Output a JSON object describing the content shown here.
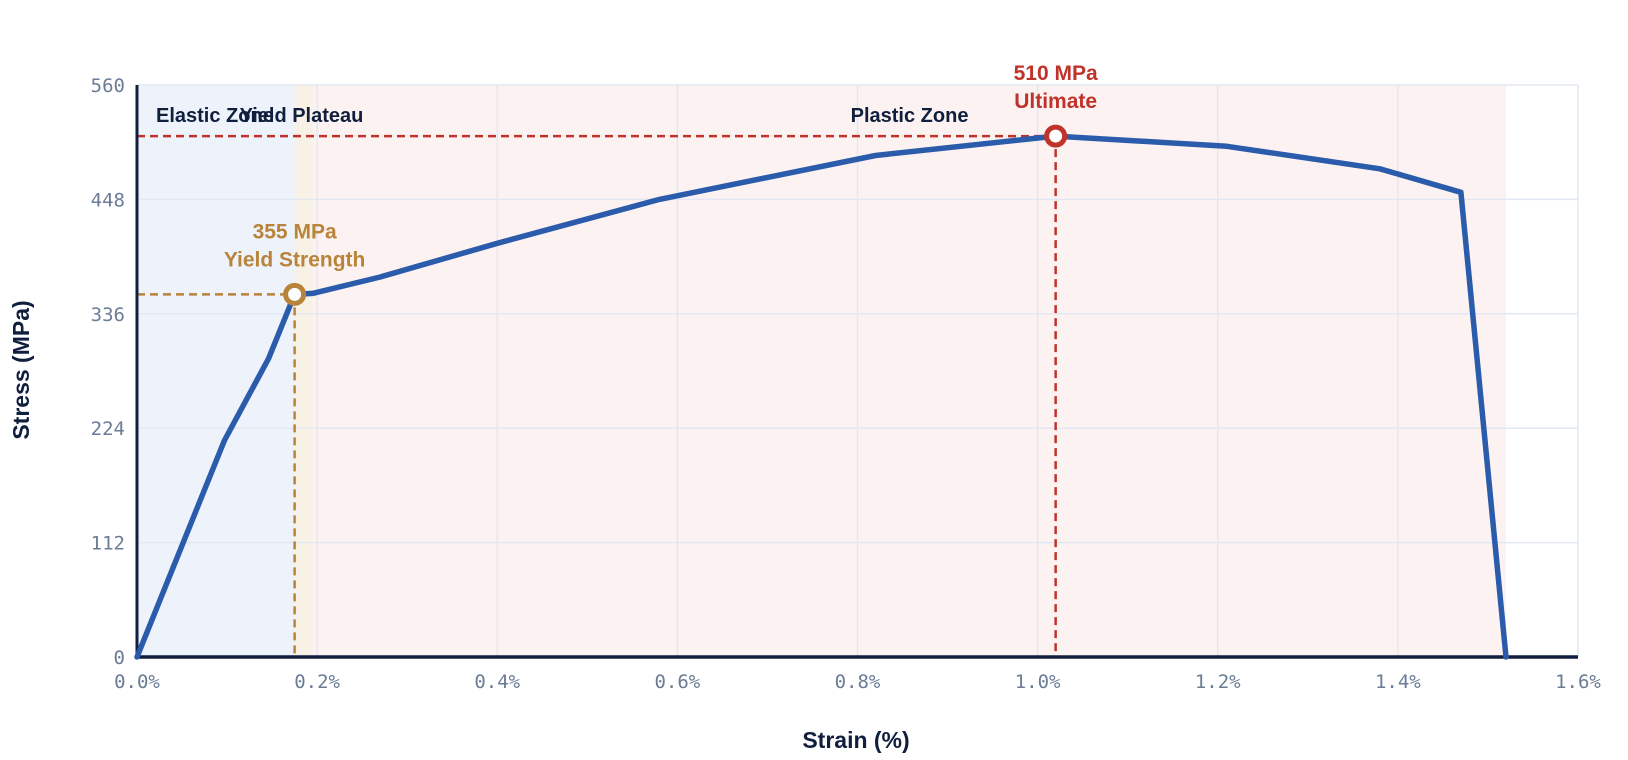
{
  "chart_data": {
    "type": "line",
    "title": "",
    "xlabel": "Strain (%)",
    "ylabel": "Stress (MPa)",
    "xlim": [
      0,
      1.6
    ],
    "ylim": [
      0,
      560
    ],
    "grid": true,
    "x_ticks": [
      {
        "value": 0.0,
        "label": "0.0%"
      },
      {
        "value": 0.2,
        "label": "0.2%"
      },
      {
        "value": 0.4,
        "label": "0.4%"
      },
      {
        "value": 0.6,
        "label": "0.6%"
      },
      {
        "value": 0.8,
        "label": "0.8%"
      },
      {
        "value": 1.0,
        "label": "1.0%"
      },
      {
        "value": 1.2,
        "label": "1.2%"
      },
      {
        "value": 1.4,
        "label": "1.4%"
      },
      {
        "value": 1.6,
        "label": "1.6%"
      }
    ],
    "y_ticks": [
      {
        "value": 0,
        "label": "0"
      },
      {
        "value": 112,
        "label": "112"
      },
      {
        "value": 224,
        "label": "224"
      },
      {
        "value": 336,
        "label": "336"
      },
      {
        "value": 448,
        "label": "448"
      },
      {
        "value": 560,
        "label": "560"
      }
    ],
    "series": [
      {
        "color": "#2b5bab",
        "x": [
          0.0,
          0.097,
          0.146,
          0.175,
          0.195,
          0.27,
          0.4,
          0.58,
          0.82,
          1.02,
          1.21,
          1.38,
          1.47,
          1.52
        ],
        "y": [
          0,
          212,
          292,
          355,
          356,
          372,
          405,
          448,
          491,
          510,
          500,
          478,
          455,
          0
        ]
      }
    ],
    "zones": [
      {
        "label": "Elastic Zone",
        "x_start": 0.0,
        "x_end": 0.175,
        "color": "#eef2fa"
      },
      {
        "label": "Yield Plateau",
        "x_start": 0.175,
        "x_end": 0.195,
        "color": "#f7f1e6"
      },
      {
        "label": "Plastic Zone",
        "x_start": 0.195,
        "x_end": 1.52,
        "color": "#fcf2f1"
      }
    ],
    "annotations": [
      {
        "value_label": "355 MPa",
        "label": "Yield Strength",
        "x": 0.175,
        "y": 355,
        "color": "#b8843a"
      },
      {
        "value_label": "510 MPa",
        "label": "Ultimate",
        "x": 1.02,
        "y": 510,
        "color": "#c0332b"
      }
    ]
  }
}
